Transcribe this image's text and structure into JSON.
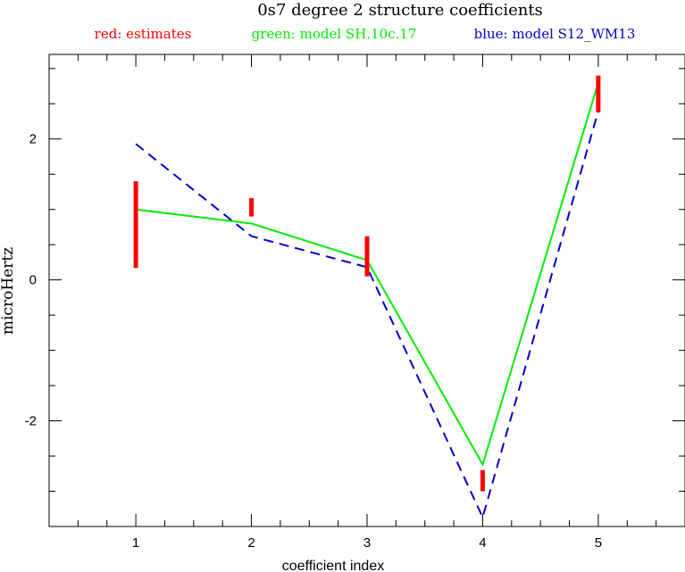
{
  "chart_data": {
    "type": "line",
    "title": "0s7 degree 2 structure coefficients",
    "xlabel": "coefficient index",
    "ylabel": "microHertz",
    "xlim": [
      0.25,
      5.75
    ],
    "ylim": [
      -3.5,
      3.2
    ],
    "x_ticks": [
      1,
      2,
      3,
      4,
      5
    ],
    "x_minor_step": 0.25,
    "y_ticks": [
      -2,
      0,
      2
    ],
    "y_minor_step": 0.5,
    "x_tick_labels": [
      "1",
      "2",
      "3",
      "4",
      "5"
    ],
    "y_tick_labels": [
      "-2",
      "0",
      "2"
    ],
    "grid": false,
    "legend": [
      {
        "text": "red: estimates",
        "color": "#ff0000"
      },
      {
        "text": "green: model SH.10c.17",
        "color": "#00ee00"
      },
      {
        "text": "blue: model S12_WM13",
        "color": "#0000cc"
      }
    ],
    "estimates": {
      "color": "#ff0000",
      "ranges": [
        {
          "x": 1,
          "low": 0.17,
          "high": 1.4
        },
        {
          "x": 2,
          "low": 0.9,
          "high": 1.16
        },
        {
          "x": 3,
          "low": 0.05,
          "high": 0.62
        },
        {
          "x": 4,
          "low": -3.0,
          "high": -2.7
        },
        {
          "x": 5,
          "low": 2.38,
          "high": 2.9
        }
      ]
    },
    "series": [
      {
        "color": "#00ee00",
        "dash": "solid",
        "x": [
          1,
          2,
          3,
          4,
          5
        ],
        "values": [
          1.0,
          0.8,
          0.28,
          -2.62,
          2.8
        ]
      },
      {
        "color": "#0000cc",
        "dash": "dashed",
        "x": [
          1,
          2,
          3,
          4,
          5
        ],
        "values": [
          1.93,
          0.62,
          0.18,
          -3.37,
          2.4
        ]
      }
    ]
  }
}
